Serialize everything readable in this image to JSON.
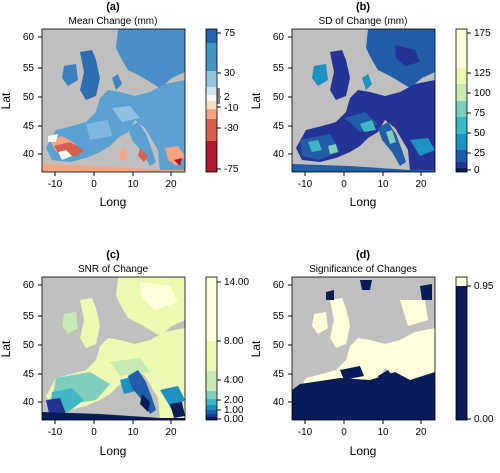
{
  "chart_data": [
    {
      "type": "heatmap",
      "panel_label": "(a)",
      "title": "Mean Change (mm)",
      "xlabel": "Long",
      "ylabel": "Lat",
      "x_ticks": [
        -10,
        0,
        10,
        20
      ],
      "y_ticks": [
        40,
        45,
        50,
        55,
        60
      ],
      "xlim": [
        -12,
        25
      ],
      "ylim": [
        35,
        61
      ],
      "colorbar": {
        "tick_labels": [
          "75",
          "30",
          "2",
          "-10",
          "-30",
          "-75"
        ],
        "tick_values": [
          75,
          30,
          2,
          -10,
          -30,
          -75
        ],
        "colors": [
          "#67000d",
          "#b2182b",
          "#d6604d",
          "#f4a582",
          "#fddbc7",
          "#f7f7f7",
          "#d1e5f0",
          "#92c5de",
          "#4393c3",
          "#2166ac"
        ]
      }
    },
    {
      "type": "heatmap",
      "panel_label": "(b)",
      "title": "SD of Change (mm)",
      "xlabel": "Long",
      "ylabel": "Lat",
      "x_ticks": [
        -10,
        0,
        10,
        20
      ],
      "y_ticks": [
        40,
        45,
        50,
        55,
        60
      ],
      "xlim": [
        -12,
        25
      ],
      "ylim": [
        35,
        61
      ],
      "colorbar": {
        "tick_labels": [
          "175",
          "125",
          "100",
          "75",
          "50",
          "25",
          "0"
        ],
        "tick_values": [
          175,
          125,
          100,
          75,
          50,
          25,
          0
        ],
        "colors": [
          "#081d58",
          "#253494",
          "#225ea8",
          "#1d91c0",
          "#41b6c4",
          "#7fcdbb",
          "#c7e9b4",
          "#edf8b1",
          "#ffffd9"
        ]
      }
    },
    {
      "type": "heatmap",
      "panel_label": "(c)",
      "title": "SNR of Change",
      "xlabel": "Long",
      "ylabel": "Lat",
      "x_ticks": [
        -10,
        0,
        10,
        20
      ],
      "y_ticks": [
        40,
        45,
        50,
        55,
        60
      ],
      "xlim": [
        -12,
        25
      ],
      "ylim": [
        35,
        61
      ],
      "colorbar": {
        "tick_labels": [
          "14.00",
          "8.00",
          "4.00",
          "2.00",
          "1.00",
          "0.00"
        ],
        "tick_values": [
          14,
          8,
          4,
          2,
          1,
          0
        ],
        "colors": [
          "#081d58",
          "#253494",
          "#225ea8",
          "#1d91c0",
          "#41b6c4",
          "#7fcdbb",
          "#c7e9b4",
          "#edf8b1",
          "#ffffd9"
        ]
      }
    },
    {
      "type": "heatmap",
      "panel_label": "(d)",
      "title": "Significance of Changes",
      "xlabel": "Long",
      "ylabel": "Lat",
      "x_ticks": [
        -10,
        0,
        10,
        20
      ],
      "y_ticks": [
        40,
        45,
        50,
        55,
        60
      ],
      "xlim": [
        -12,
        25
      ],
      "ylim": [
        35,
        61
      ],
      "colorbar": {
        "tick_labels": [
          "0.95",
          "0.00"
        ],
        "tick_values": [
          0.95,
          0.0
        ],
        "colors": [
          "#081d58",
          "#ffffd9"
        ]
      }
    }
  ]
}
